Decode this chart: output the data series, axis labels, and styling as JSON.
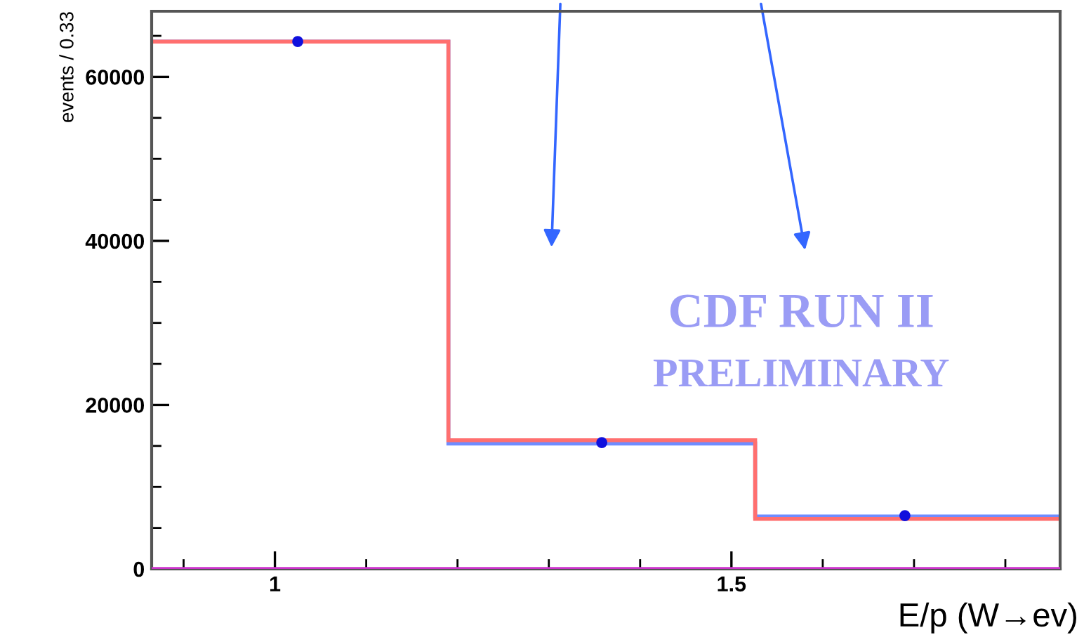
{
  "chart_data": {
    "type": "histogram",
    "ylabel": "events / 0.33",
    "xlabel": "E/p (W→ev)",
    "annotations": [
      "CDF RUN II",
      "PRELIMINARY"
    ],
    "bins": [
      0.865,
      1.19,
      1.526,
      1.86
    ],
    "series": [
      {
        "color": "#6f8cff",
        "values": [
          64300,
          15300,
          6400
        ]
      },
      {
        "color": "#ff6f6f",
        "values": [
          64300,
          15700,
          6100
        ]
      },
      {
        "type": "scatter",
        "color": "#1010dd",
        "x": [
          1.025,
          1.358,
          1.69
        ],
        "values": [
          64300,
          15400,
          6500
        ]
      }
    ],
    "ref_lines": [
      {
        "axis": "y",
        "value": 0,
        "color": "#cc33cc"
      }
    ],
    "xlim": [
      0.865,
      1.86
    ],
    "ylim": [
      0,
      68000
    ],
    "xticks": [
      {
        "value": 0.9,
        "label": null
      },
      1,
      {
        "value": 1.1,
        "label": null
      },
      {
        "value": 1.2,
        "label": null
      },
      {
        "value": 1.3,
        "label": null
      },
      {
        "value": 1.4,
        "label": null
      },
      1.5,
      {
        "value": 1.6,
        "label": null
      },
      {
        "value": 1.7,
        "label": null
      },
      {
        "value": 1.8,
        "label": null
      }
    ],
    "yticks": [
      0,
      {
        "value": 5000,
        "label": null
      },
      {
        "value": 10000,
        "label": null
      },
      {
        "value": 15000,
        "label": null
      },
      20000,
      {
        "value": 25000,
        "label": null
      },
      {
        "value": 30000,
        "label": null
      },
      {
        "value": 35000,
        "label": null
      },
      40000,
      {
        "value": 45000,
        "label": null
      },
      {
        "value": 50000,
        "label": null
      },
      {
        "value": 55000,
        "label": null
      },
      60000,
      {
        "value": 65000,
        "label": null
      }
    ],
    "grid": false,
    "marker": "circle"
  }
}
